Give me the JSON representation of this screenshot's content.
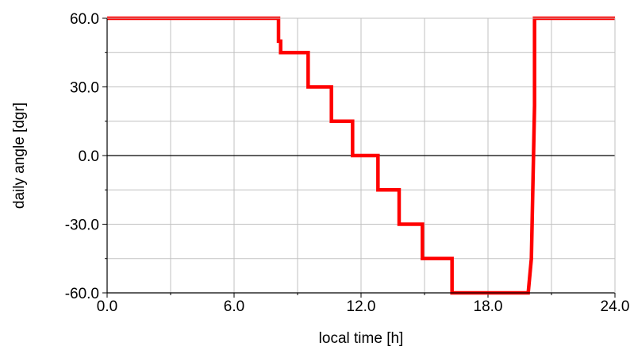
{
  "chart_data": {
    "type": "line",
    "title": "",
    "xlabel": "local time [h]",
    "ylabel": "daily angle [dgr]",
    "xlim": [
      0,
      24
    ],
    "ylim": [
      -60,
      60
    ],
    "x_ticks": [
      0,
      6,
      12,
      18,
      24
    ],
    "x_tick_labels": [
      "0.0",
      "6.0",
      "12.0",
      "18.0",
      "24.0"
    ],
    "y_ticks": [
      60,
      30,
      0,
      -30,
      -60
    ],
    "y_tick_labels": [
      "60.0",
      "30.0",
      "0.0",
      "-30.0",
      "-60.0"
    ],
    "x_grid": [
      3,
      6,
      9,
      12,
      15,
      18,
      21
    ],
    "y_grid": [
      45,
      30,
      15,
      -15,
      -30,
      -45
    ],
    "y_minor_ticks": [
      45,
      15,
      -15,
      -45
    ],
    "zero_line": 0,
    "grid": true,
    "legend": "none",
    "colors": {
      "series": "#ff0000",
      "grid": "#c0c0c0",
      "axis": "#000000"
    },
    "series": [
      {
        "x": [
          0,
          8.1,
          8.1,
          8.2,
          8.2,
          9.5,
          9.5,
          10.6,
          10.6,
          11.6,
          11.6,
          12.8,
          12.8,
          13.8,
          13.8,
          14.9,
          14.9,
          16.3,
          16.3,
          19.9,
          20.05,
          20.2,
          20.2,
          24
        ],
        "y": [
          60,
          60,
          50,
          50,
          45,
          45,
          30,
          30,
          15,
          15,
          0,
          0,
          -15,
          -15,
          -30,
          -30,
          -45,
          -45,
          -60,
          -60,
          -45,
          22,
          60,
          60
        ]
      }
    ]
  }
}
